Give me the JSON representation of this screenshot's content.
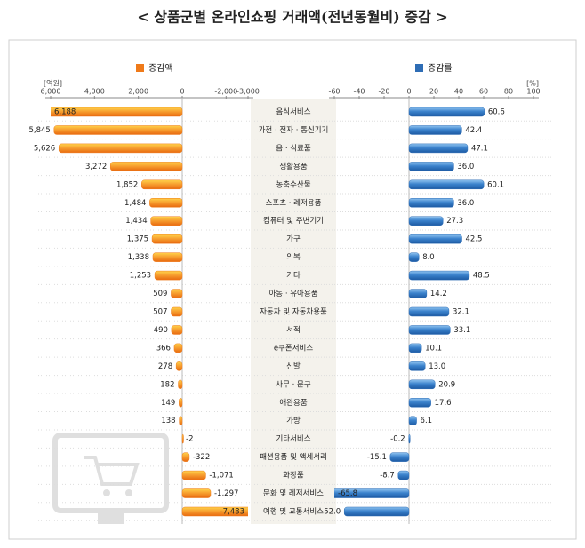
{
  "chart_data": {
    "type": "butterfly",
    "title": "< 상품군별 온라인쇼핑 거래액(전년동월비) 증감 >",
    "categories": [
      "음식서비스",
      "가전 · 전자 · 통신기기",
      "음 · 식료품",
      "생활용품",
      "농축수산물",
      "스포츠 · 레저용품",
      "컴퓨터 및 주변기기",
      "가구",
      "의복",
      "기타",
      "아동 · 유아용품",
      "자동차 및 자동차용품",
      "서적",
      "e쿠폰서비스",
      "신발",
      "사무 · 문구",
      "애완용품",
      "가방",
      "기타서비스",
      "패션용품 및 액세서리",
      "화장품",
      "문화 및 레저서비스",
      "여행 및 교통서비스"
    ],
    "series": [
      {
        "name": "증감액",
        "unit": "[억원]",
        "color": "#ef7a1a",
        "values": [
          6188,
          5845,
          5626,
          3272,
          1852,
          1484,
          1434,
          1375,
          1338,
          1253,
          509,
          507,
          490,
          366,
          278,
          182,
          149,
          138,
          -2,
          -322,
          -1071,
          -1297,
          -7483
        ],
        "value_labels": [
          "6,188",
          "5,845",
          "5,626",
          "3,272",
          "1,852",
          "1,484",
          "1,434",
          "1,375",
          "1,338",
          "1,253",
          "509",
          "507",
          "490",
          "366",
          "278",
          "182",
          "149",
          "138",
          "-2",
          "-322",
          "-1,071",
          "-1,297",
          "-7,483"
        ],
        "xlim": [
          6000,
          -3000
        ],
        "xticks": [
          {
            "value": 6000,
            "label": "6,000"
          },
          {
            "value": 4000,
            "label": "4,000"
          },
          {
            "value": 2000,
            "label": "2,000"
          },
          0,
          {
            "value": -2000,
            "label": "-2,000"
          },
          {
            "value": -3000,
            "label": "-3,000"
          }
        ]
      },
      {
        "name": "증감률",
        "unit": "[%]",
        "color": "#2e6db5",
        "values": [
          60.6,
          42.4,
          47.1,
          36.0,
          60.1,
          36.0,
          27.3,
          42.5,
          8.0,
          48.5,
          14.2,
          32.1,
          33.1,
          10.1,
          13.0,
          20.9,
          17.6,
          6.1,
          -0.2,
          -15.1,
          -8.7,
          -65.8,
          -52.0
        ],
        "value_labels": [
          "60.6",
          "42.4",
          "47.1",
          "36.0",
          "60.1",
          "36.0",
          "27.3",
          "42.5",
          "8.0",
          "48.5",
          "14.2",
          "32.1",
          "33.1",
          "10.1",
          "13.0",
          "20.9",
          "17.6",
          "6.1",
          "-0.2",
          "-15.1",
          "-8.7",
          "-65.8",
          "-52.0"
        ],
        "xlim": [
          -60,
          100
        ],
        "xticks": [
          -60,
          -40,
          -20,
          0,
          20,
          40,
          60,
          80,
          100
        ]
      }
    ]
  }
}
